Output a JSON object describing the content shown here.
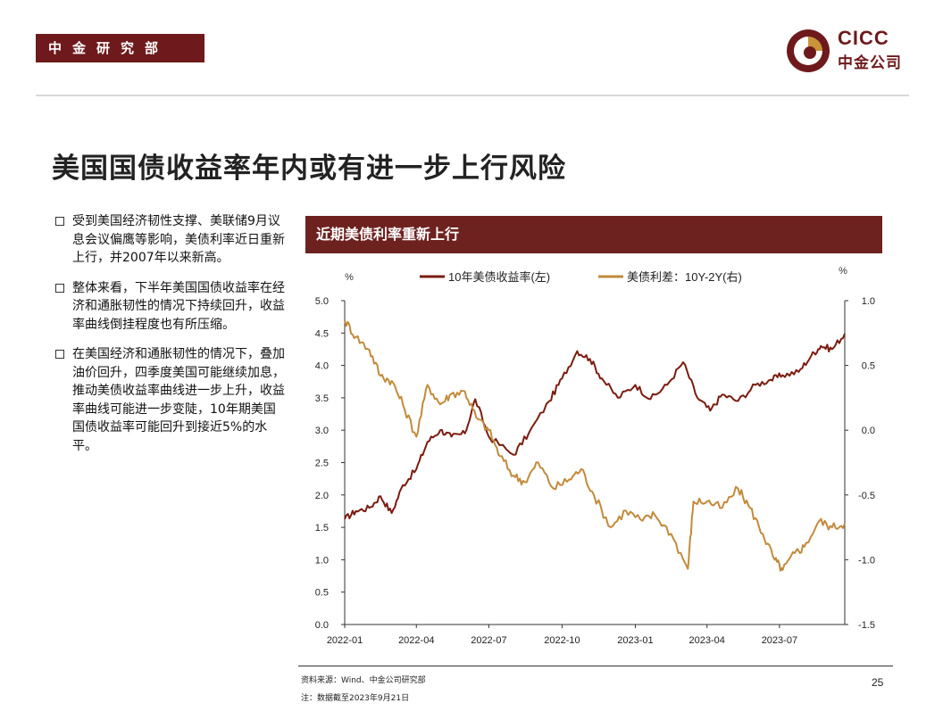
{
  "header": {
    "dept_label": "中金研究部",
    "logo_en": "CICC",
    "logo_cn": "中金公司"
  },
  "slide": {
    "title": "美国国债收益率年内或有进一步上行风险",
    "bullets": [
      "受到美国经济韧性支撑、美联储9月议息会议偏鹰等影响，美债利率近日重新上行，并2007年以来新高。",
      "整体来看，下半年美国国债收益率在经济和通胀韧性的情况下持续回升，收益率曲线倒挂程度也有所压缩。",
      "在美国经济和通胀韧性的情况下，叠加油价回升，四季度美国可能继续加息，推动美债收益率曲线进一步上升，收益率曲线可能进一步变陡，10年期美国国债收益率可能回升到接近5%的水平。"
    ],
    "chart_banner": "近期美债利率重新上行"
  },
  "chart_data": {
    "type": "line",
    "title": "近期美债利率重新上行",
    "left_unit": "%",
    "right_unit": "%",
    "x_ticks": [
      "2022-01",
      "2022-04",
      "2022-07",
      "2022-10",
      "2023-01",
      "2023-04",
      "2023-07"
    ],
    "y_left_ticks": [
      "5.0",
      "4.5",
      "4.0",
      "3.5",
      "3.0",
      "2.5",
      "2.0",
      "1.5",
      "1.0",
      "0.5",
      "0.0"
    ],
    "y_right_ticks": [
      "1.0",
      "0.5",
      "0.0",
      "-0.5",
      "-1.0",
      "-1.5"
    ],
    "y_left_range": [
      0,
      5
    ],
    "y_right_range": [
      -1.5,
      1.0
    ],
    "x_range": [
      "2022-01-01",
      "2023-09-21"
    ],
    "colors": {
      "series1": "#7b1c10",
      "series2": "#c28a3c"
    },
    "series": [
      {
        "name": "10年美债收益率(左)",
        "axis": "left",
        "points": [
          [
            "2022-01-01",
            1.63
          ],
          [
            "2022-01-15",
            1.75
          ],
          [
            "2022-02-01",
            1.8
          ],
          [
            "2022-02-15",
            1.98
          ],
          [
            "2022-03-01",
            1.72
          ],
          [
            "2022-03-15",
            2.15
          ],
          [
            "2022-04-01",
            2.4
          ],
          [
            "2022-04-15",
            2.82
          ],
          [
            "2022-05-01",
            3.0
          ],
          [
            "2022-05-15",
            2.9
          ],
          [
            "2022-06-01",
            2.95
          ],
          [
            "2022-06-14",
            3.48
          ],
          [
            "2022-07-01",
            2.9
          ],
          [
            "2022-08-01",
            2.62
          ],
          [
            "2022-08-20",
            2.95
          ],
          [
            "2022-09-15",
            3.45
          ],
          [
            "2022-10-01",
            3.8
          ],
          [
            "2022-10-20",
            4.22
          ],
          [
            "2022-11-05",
            4.1
          ],
          [
            "2022-11-20",
            3.8
          ],
          [
            "2022-12-10",
            3.5
          ],
          [
            "2023-01-01",
            3.7
          ],
          [
            "2023-01-20",
            3.48
          ],
          [
            "2023-02-10",
            3.7
          ],
          [
            "2023-03-02",
            4.05
          ],
          [
            "2023-03-20",
            3.5
          ],
          [
            "2023-04-05",
            3.3
          ],
          [
            "2023-04-20",
            3.55
          ],
          [
            "2023-05-10",
            3.45
          ],
          [
            "2023-06-01",
            3.7
          ],
          [
            "2023-06-20",
            3.78
          ],
          [
            "2023-07-05",
            3.85
          ],
          [
            "2023-07-25",
            3.9
          ],
          [
            "2023-08-10",
            4.15
          ],
          [
            "2023-08-22",
            4.3
          ],
          [
            "2023-09-05",
            4.25
          ],
          [
            "2023-09-21",
            4.49
          ]
        ]
      },
      {
        "name": "美债利差：10Y-2Y(右)",
        "axis": "right",
        "points": [
          [
            "2022-01-01",
            0.85
          ],
          [
            "2022-01-15",
            0.72
          ],
          [
            "2022-02-01",
            0.62
          ],
          [
            "2022-02-15",
            0.42
          ],
          [
            "2022-03-01",
            0.38
          ],
          [
            "2022-03-15",
            0.2
          ],
          [
            "2022-04-01",
            -0.05
          ],
          [
            "2022-04-15",
            0.35
          ],
          [
            "2022-05-01",
            0.2
          ],
          [
            "2022-05-15",
            0.28
          ],
          [
            "2022-06-01",
            0.3
          ],
          [
            "2022-06-15",
            0.1
          ],
          [
            "2022-07-01",
            0.0
          ],
          [
            "2022-07-15",
            -0.2
          ],
          [
            "2022-08-01",
            -0.35
          ],
          [
            "2022-08-15",
            -0.4
          ],
          [
            "2022-09-01",
            -0.25
          ],
          [
            "2022-09-20",
            -0.45
          ],
          [
            "2022-10-10",
            -0.38
          ],
          [
            "2022-10-25",
            -0.3
          ],
          [
            "2022-11-10",
            -0.5
          ],
          [
            "2022-12-01",
            -0.75
          ],
          [
            "2022-12-20",
            -0.62
          ],
          [
            "2023-01-10",
            -0.7
          ],
          [
            "2023-01-25",
            -0.65
          ],
          [
            "2023-02-15",
            -0.8
          ],
          [
            "2023-03-08",
            -1.07
          ],
          [
            "2023-03-15",
            -0.55
          ],
          [
            "2023-04-01",
            -0.55
          ],
          [
            "2023-04-20",
            -0.6
          ],
          [
            "2023-05-10",
            -0.45
          ],
          [
            "2023-05-25",
            -0.6
          ],
          [
            "2023-06-10",
            -0.8
          ],
          [
            "2023-06-25",
            -1.0
          ],
          [
            "2023-07-05",
            -1.08
          ],
          [
            "2023-07-20",
            -0.95
          ],
          [
            "2023-08-01",
            -0.9
          ],
          [
            "2023-08-20",
            -0.7
          ],
          [
            "2023-09-05",
            -0.75
          ],
          [
            "2023-09-21",
            -0.72
          ]
        ]
      }
    ]
  },
  "footer": {
    "source": "资料来源：Wind、中金公司研究部",
    "note": "注：数据截至2023年9月21日",
    "page_number": "25"
  }
}
